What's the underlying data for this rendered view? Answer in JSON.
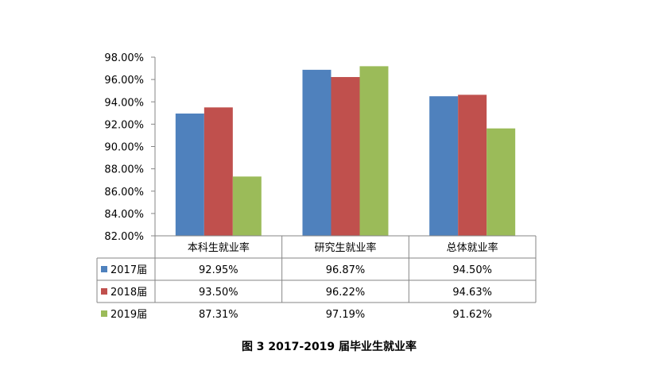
{
  "chart_data": {
    "type": "bar",
    "categories": [
      "本科生就业率",
      "研究生就业率",
      "总体就业率"
    ],
    "series": [
      {
        "name": "2017届",
        "values": [
          "92.95%",
          "96.87%",
          "94.50%"
        ],
        "numeric": [
          92.95,
          96.87,
          94.5
        ],
        "color": "#4F81BD"
      },
      {
        "name": "2018届",
        "values": [
          "93.50%",
          "96.22%",
          "94.63%"
        ],
        "numeric": [
          93.5,
          96.22,
          94.63
        ],
        "color": "#C0504D"
      },
      {
        "name": "2019届",
        "values": [
          "87.31%",
          "97.19%",
          "91.62%"
        ],
        "numeric": [
          87.31,
          97.19,
          91.62
        ],
        "color": "#9BBB59"
      }
    ],
    "ylim": [
      82,
      98
    ],
    "yticks": [
      "82.00%",
      "84.00%",
      "86.00%",
      "88.00%",
      "90.00%",
      "92.00%",
      "94.00%",
      "96.00%",
      "98.00%"
    ],
    "ytick_values": [
      82,
      84,
      86,
      88,
      90,
      92,
      94,
      96,
      98
    ],
    "grid": false,
    "legend": "data-table"
  },
  "caption": "图 3   2017-2019 届毕业生就业率"
}
